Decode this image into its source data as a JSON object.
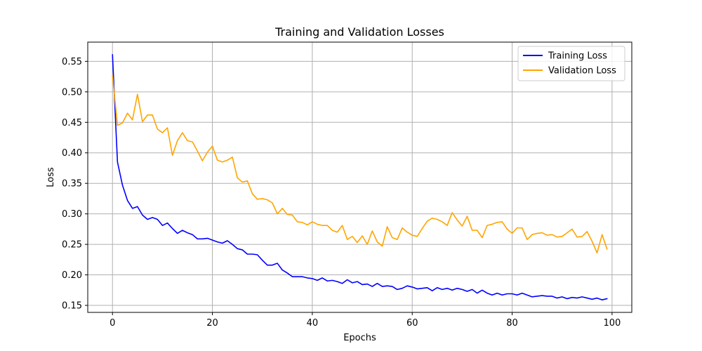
{
  "chart_data": {
    "type": "line",
    "title": "Training and Validation Losses",
    "xlabel": "Epochs",
    "ylabel": "Loss",
    "xlim": [
      -4.95,
      103.95
    ],
    "ylim": [
      0.1385,
      0.5815
    ],
    "xticks": [
      0,
      20,
      40,
      60,
      80,
      100
    ],
    "yticks": [
      0.15,
      0.2,
      0.25,
      0.3,
      0.35,
      0.4,
      0.45,
      0.5,
      0.55
    ],
    "grid": true,
    "legend_position": "top-right",
    "series": [
      {
        "name": "Training Loss",
        "color": "#0000ff",
        "values": [
          0.561,
          0.385,
          0.347,
          0.322,
          0.309,
          0.312,
          0.298,
          0.291,
          0.294,
          0.291,
          0.281,
          0.285,
          0.276,
          0.268,
          0.273,
          0.269,
          0.266,
          0.259,
          0.259,
          0.26,
          0.257,
          0.254,
          0.252,
          0.256,
          0.25,
          0.243,
          0.241,
          0.234,
          0.234,
          0.233,
          0.224,
          0.216,
          0.216,
          0.219,
          0.208,
          0.203,
          0.197,
          0.197,
          0.197,
          0.195,
          0.194,
          0.191,
          0.195,
          0.19,
          0.191,
          0.189,
          0.186,
          0.192,
          0.187,
          0.189,
          0.184,
          0.185,
          0.181,
          0.186,
          0.181,
          0.182,
          0.181,
          0.176,
          0.178,
          0.182,
          0.18,
          0.177,
          0.178,
          0.179,
          0.174,
          0.179,
          0.176,
          0.178,
          0.175,
          0.178,
          0.176,
          0.173,
          0.176,
          0.17,
          0.175,
          0.17,
          0.167,
          0.17,
          0.167,
          0.169,
          0.169,
          0.167,
          0.17,
          0.167,
          0.164,
          0.165,
          0.166,
          0.165,
          0.165,
          0.162,
          0.164,
          0.161,
          0.163,
          0.162,
          0.164,
          0.162,
          0.16,
          0.162,
          0.159,
          0.161
        ]
      },
      {
        "name": "Validation Loss",
        "color": "#ffa500",
        "values": [
          0.527,
          0.445,
          0.449,
          0.465,
          0.454,
          0.496,
          0.451,
          0.462,
          0.462,
          0.439,
          0.433,
          0.441,
          0.396,
          0.42,
          0.433,
          0.42,
          0.418,
          0.403,
          0.387,
          0.401,
          0.411,
          0.388,
          0.385,
          0.388,
          0.393,
          0.359,
          0.352,
          0.354,
          0.333,
          0.324,
          0.325,
          0.323,
          0.318,
          0.3,
          0.309,
          0.299,
          0.298,
          0.287,
          0.286,
          0.282,
          0.287,
          0.283,
          0.281,
          0.281,
          0.273,
          0.27,
          0.281,
          0.258,
          0.263,
          0.253,
          0.264,
          0.25,
          0.272,
          0.254,
          0.247,
          0.279,
          0.261,
          0.258,
          0.277,
          0.27,
          0.265,
          0.263,
          0.276,
          0.288,
          0.293,
          0.291,
          0.287,
          0.281,
          0.302,
          0.29,
          0.28,
          0.296,
          0.273,
          0.273,
          0.261,
          0.281,
          0.283,
          0.286,
          0.287,
          0.275,
          0.268,
          0.277,
          0.277,
          0.258,
          0.266,
          0.268,
          0.269,
          0.265,
          0.266,
          0.262,
          0.263,
          0.269,
          0.275,
          0.262,
          0.263,
          0.271,
          0.255,
          0.236,
          0.266,
          0.242
        ]
      }
    ]
  }
}
